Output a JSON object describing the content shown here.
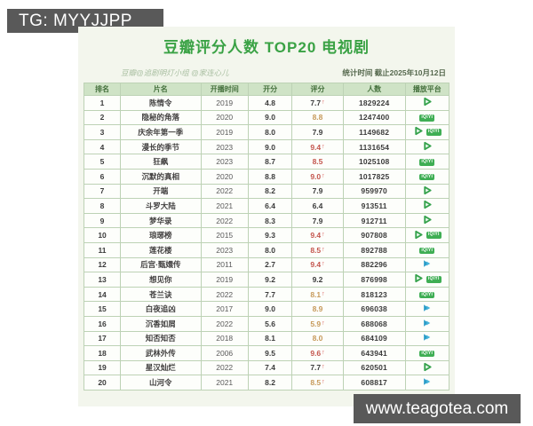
{
  "watermarks": {
    "tg": "TG: MYYJJPP",
    "site": "www.teagotea.com"
  },
  "poster": {
    "title": "豆瓣评分人数 TOP20 电视剧",
    "credit": "豆瓣@追剧明灯小组 @家连心儿",
    "stat_time": "统计时间 截止2025年10月12日"
  },
  "colors": {
    "title_green": "#3aa245",
    "header_bg": "#cfe3c6",
    "header_text": "#44703c",
    "score_red": "#c4564e",
    "score_orange": "#c79a5b",
    "badge_bg": "#595959",
    "platform_green": "#3fae54",
    "platform_blue": "#2a9cc8"
  },
  "chart_data": {
    "type": "table",
    "title": "豆瓣评分人数 TOP20 电视剧",
    "stat_time": "统计时间 截止2025年10月12日",
    "columns": [
      "排名",
      "片名",
      "开播时间",
      "开分",
      "评分",
      "人数",
      "播放平台"
    ],
    "platform_legend": {
      "tencent": "腾讯视频",
      "iqiyi": "爱奇艺",
      "youku": "优酷"
    },
    "rows": [
      {
        "rank": "1",
        "title": "陈情令",
        "year": "2019",
        "open_score": "4.8",
        "score": "7.7",
        "up": true,
        "score_color": "dark",
        "count": "1829224",
        "platforms": [
          "tencent"
        ]
      },
      {
        "rank": "2",
        "title": "隐秘的角落",
        "year": "2020",
        "open_score": "9.0",
        "score": "8.8",
        "up": false,
        "score_color": "orange",
        "count": "1247400",
        "platforms": [
          "iqiyi"
        ]
      },
      {
        "rank": "3",
        "title": "庆余年第一季",
        "year": "2019",
        "open_score": "8.0",
        "score": "7.9",
        "up": false,
        "score_color": "dark",
        "count": "1149682",
        "platforms": [
          "tencent",
          "iqiyi"
        ]
      },
      {
        "rank": "4",
        "title": "漫长的季节",
        "year": "2023",
        "open_score": "9.0",
        "score": "9.4",
        "up": true,
        "score_color": "red",
        "count": "1131654",
        "platforms": [
          "tencent"
        ]
      },
      {
        "rank": "5",
        "title": "狂飙",
        "year": "2023",
        "open_score": "8.7",
        "score": "8.5",
        "up": false,
        "score_color": "red",
        "count": "1025108",
        "platforms": [
          "iqiyi"
        ]
      },
      {
        "rank": "6",
        "title": "沉默的真相",
        "year": "2020",
        "open_score": "8.8",
        "score": "9.0",
        "up": true,
        "score_color": "red",
        "count": "1017825",
        "platforms": [
          "iqiyi"
        ]
      },
      {
        "rank": "7",
        "title": "开端",
        "year": "2022",
        "open_score": "8.2",
        "score": "7.9",
        "up": false,
        "score_color": "dark",
        "count": "959970",
        "platforms": [
          "tencent"
        ]
      },
      {
        "rank": "8",
        "title": "斗罗大陆",
        "year": "2021",
        "open_score": "6.4",
        "score": "6.4",
        "up": false,
        "score_color": "dark",
        "count": "913511",
        "platforms": [
          "tencent"
        ]
      },
      {
        "rank": "9",
        "title": "梦华录",
        "year": "2022",
        "open_score": "8.3",
        "score": "7.9",
        "up": false,
        "score_color": "dark",
        "count": "912711",
        "platforms": [
          "tencent"
        ]
      },
      {
        "rank": "10",
        "title": "琅琊榜",
        "year": "2015",
        "open_score": "9.3",
        "score": "9.4",
        "up": true,
        "score_color": "red",
        "count": "907808",
        "platforms": [
          "tencent",
          "iqiyi"
        ]
      },
      {
        "rank": "11",
        "title": "莲花楼",
        "year": "2023",
        "open_score": "8.0",
        "score": "8.5",
        "up": true,
        "score_color": "red",
        "count": "892788",
        "platforms": [
          "iqiyi"
        ]
      },
      {
        "rank": "12",
        "title": "后宫·甄嬛传",
        "year": "2011",
        "open_score": "2.7",
        "score": "9.4",
        "up": true,
        "score_color": "red",
        "count": "882296",
        "platforms": [
          "youku"
        ]
      },
      {
        "rank": "13",
        "title": "想见你",
        "year": "2019",
        "open_score": "9.2",
        "score": "9.2",
        "up": false,
        "score_color": "dark",
        "count": "876998",
        "platforms": [
          "tencent",
          "iqiyi"
        ]
      },
      {
        "rank": "14",
        "title": "苍兰诀",
        "year": "2022",
        "open_score": "7.7",
        "score": "8.1",
        "up": true,
        "score_color": "orange",
        "count": "818123",
        "platforms": [
          "iqiyi"
        ]
      },
      {
        "rank": "15",
        "title": "白夜追凶",
        "year": "2017",
        "open_score": "9.0",
        "score": "8.9",
        "up": false,
        "score_color": "orange",
        "count": "696038",
        "platforms": [
          "youku"
        ]
      },
      {
        "rank": "16",
        "title": "沉香如屑",
        "year": "2022",
        "open_score": "5.6",
        "score": "5.9",
        "up": true,
        "score_color": "orange",
        "count": "688068",
        "platforms": [
          "youku"
        ]
      },
      {
        "rank": "17",
        "title": "知否知否",
        "year": "2018",
        "open_score": "8.1",
        "score": "8.0",
        "up": false,
        "score_color": "orange",
        "count": "684109",
        "platforms": [
          "youku"
        ]
      },
      {
        "rank": "18",
        "title": "武林外传",
        "year": "2006",
        "open_score": "9.5",
        "score": "9.6",
        "up": true,
        "score_color": "red",
        "count": "643941",
        "platforms": [
          "iqiyi"
        ]
      },
      {
        "rank": "19",
        "title": "星汉灿烂",
        "year": "2022",
        "open_score": "7.4",
        "score": "7.7",
        "up": true,
        "score_color": "dark",
        "count": "620501",
        "platforms": [
          "tencent"
        ]
      },
      {
        "rank": "20",
        "title": "山河令",
        "year": "2021",
        "open_score": "8.2",
        "score": "8.5",
        "up": true,
        "score_color": "orange",
        "count": "608817",
        "platforms": [
          "youku"
        ]
      }
    ]
  }
}
